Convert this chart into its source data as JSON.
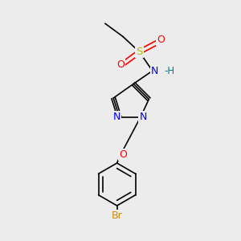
{
  "background_color": "#ececec",
  "bond_color": "#000000",
  "bond_width": 1.2,
  "figsize": [
    3.0,
    3.0
  ],
  "dpi": 100,
  "atoms": {
    "S": {
      "color": "#bbbb00"
    },
    "O": {
      "color": "#ff0000"
    },
    "N": {
      "color": "#0000ee"
    },
    "H": {
      "color": "#008080"
    },
    "Br": {
      "color": "#cc8800"
    }
  },
  "fontsize": 8.5
}
